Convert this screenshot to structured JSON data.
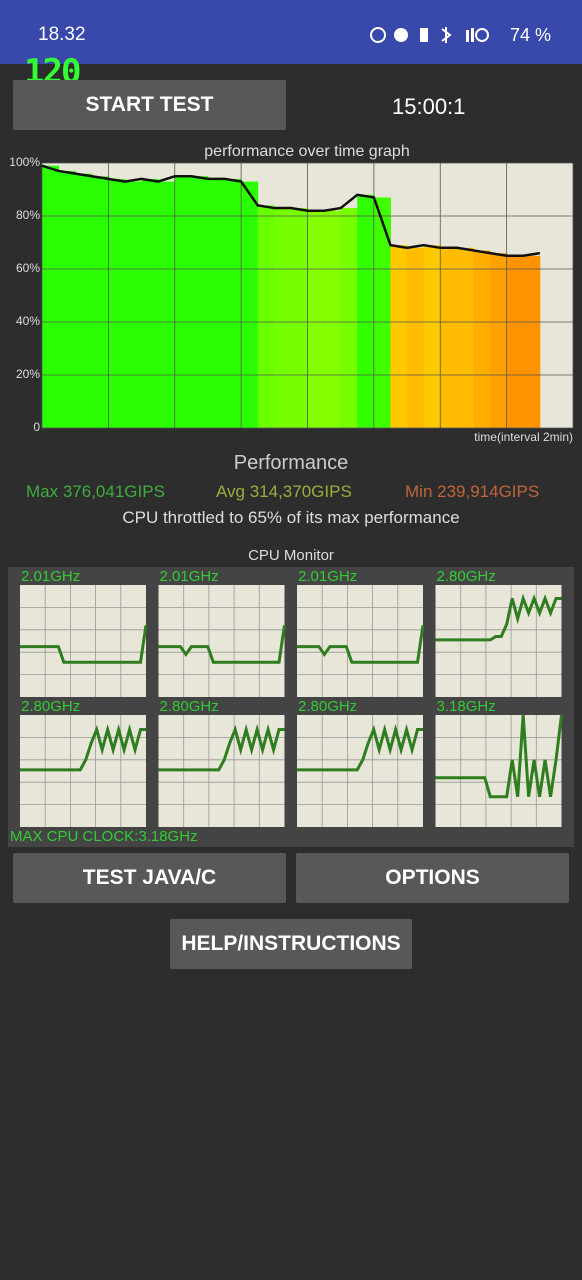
{
  "status_bar": {
    "time": "18.32",
    "battery": "74 %"
  },
  "fps_counter": "120",
  "buttons": {
    "start": "START TEST",
    "java": "TEST JAVA/C",
    "options": "OPTIONS",
    "help": "HELP/INSTRUCTIONS"
  },
  "timer": "15:00:1",
  "performance_graph": {
    "type": "line",
    "title": "performance over time graph",
    "x_label": "time(interval 2min)",
    "xlim": [
      0,
      16
    ],
    "xticks": [
      0,
      2,
      4,
      6,
      8,
      10,
      12,
      14,
      16
    ],
    "ylim": [
      0,
      100
    ],
    "yticks": [
      0,
      {
        "value": 20,
        "label": "20%"
      },
      {
        "value": 40,
        "label": "40%"
      },
      {
        "value": 60,
        "label": "60%"
      },
      {
        "value": 80,
        "label": "80%"
      },
      {
        "value": 100,
        "label": "100%"
      }
    ],
    "x": [
      0,
      0.5,
      1,
      1.5,
      2,
      2.5,
      3,
      3.5,
      4,
      4.5,
      5,
      5.5,
      6,
      6.5,
      7,
      7.5,
      8,
      8.5,
      9,
      9.5,
      10,
      10.5,
      11,
      11.5,
      12,
      12.5,
      13,
      13.5,
      14,
      14.5,
      15
    ],
    "values": [
      99,
      97,
      96,
      95,
      94,
      93,
      94,
      93,
      95,
      95,
      94,
      94,
      93,
      84,
      83,
      83,
      82,
      82,
      83,
      88,
      87,
      69,
      68,
      69,
      68,
      68,
      67,
      66,
      65,
      65,
      66
    ],
    "color": "#111111",
    "grid": true
  },
  "summary": {
    "heading": "Performance",
    "max": "Max 376,041GIPS",
    "avg": "Avg 314,370GIPS",
    "min": "Min 239,914GIPS",
    "throttle": "CPU throttled to 65% of its max performance"
  },
  "cpu_monitor": {
    "title": "CPU Monitor",
    "ylim": [
      0,
      100
    ],
    "color": "#2e7d1e",
    "cores": [
      {
        "label": "2.01GHz",
        "values": [
          45,
          45,
          45,
          45,
          45,
          45,
          45,
          45,
          31,
          31,
          31,
          31,
          31,
          31,
          31,
          31,
          31,
          31,
          31,
          31,
          31,
          31,
          31,
          64
        ]
      },
      {
        "label": "2.01GHz",
        "values": [
          45,
          45,
          45,
          45,
          45,
          38,
          45,
          45,
          45,
          45,
          31,
          31,
          31,
          31,
          31,
          31,
          31,
          31,
          31,
          31,
          31,
          31,
          31,
          64
        ]
      },
      {
        "label": "2.01GHz",
        "values": [
          45,
          45,
          45,
          45,
          45,
          38,
          45,
          45,
          45,
          45,
          31,
          31,
          31,
          31,
          31,
          31,
          31,
          31,
          31,
          31,
          31,
          31,
          31,
          64
        ]
      },
      {
        "label": "2.80GHz",
        "values": [
          51,
          51,
          51,
          51,
          51,
          51,
          51,
          51,
          51,
          51,
          51,
          54,
          54,
          65,
          88,
          70,
          88,
          75,
          88,
          75,
          88,
          75,
          88,
          88
        ]
      },
      {
        "label": "2.80GHz",
        "values": [
          51,
          51,
          51,
          51,
          51,
          51,
          51,
          51,
          51,
          51,
          51,
          51,
          60,
          75,
          87,
          69,
          87,
          69,
          87,
          69,
          87,
          69,
          87,
          87
        ]
      },
      {
        "label": "2.80GHz",
        "values": [
          51,
          51,
          51,
          51,
          51,
          51,
          51,
          51,
          51,
          51,
          51,
          51,
          60,
          75,
          87,
          69,
          87,
          69,
          87,
          69,
          87,
          69,
          87,
          87
        ]
      },
      {
        "label": "2.80GHz",
        "values": [
          51,
          51,
          51,
          51,
          51,
          51,
          51,
          51,
          51,
          51,
          51,
          51,
          60,
          75,
          87,
          69,
          87,
          69,
          87,
          69,
          87,
          69,
          87,
          87
        ]
      },
      {
        "label": "3.18GHz",
        "values": [
          44,
          44,
          44,
          44,
          44,
          44,
          44,
          44,
          44,
          44,
          27,
          27,
          27,
          27,
          60,
          27,
          100,
          27,
          60,
          27,
          60,
          27,
          60,
          100
        ]
      }
    ],
    "max_clock": "MAX CPU CLOCK:3.18GHz"
  }
}
